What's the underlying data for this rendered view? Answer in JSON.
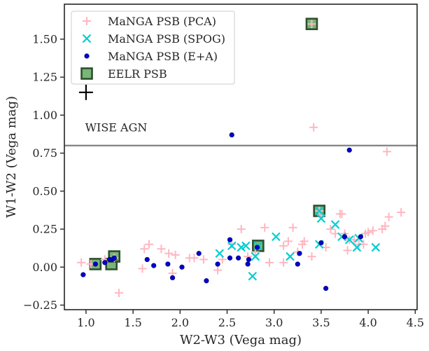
{
  "chart_data": {
    "type": "scatter",
    "xlabel": "W2-W3 (Vega mag)",
    "ylabel": "W1-W2 (Vega mag)",
    "xlim": [
      0.77,
      4.52
    ],
    "ylim": [
      -0.28,
      1.73
    ],
    "xticks": [
      1.0,
      1.5,
      2.0,
      2.5,
      3.0,
      3.5,
      4.0,
      4.5
    ],
    "xtick_labels": [
      "1.0",
      "1.5",
      "2.0",
      "2.5",
      "3.0",
      "3.5",
      "4.0",
      "4.5"
    ],
    "yticks": [
      -0.25,
      0.0,
      0.25,
      0.5,
      0.75,
      1.0,
      1.25,
      1.5
    ],
    "ytick_labels": [
      "−0.25",
      "0.00",
      "0.25",
      "0.50",
      "0.75",
      "1.00",
      "1.25",
      "1.50"
    ],
    "hline": {
      "y": 0.8,
      "color": "#808080",
      "label": "WISE AGN",
      "label_x": 0.99,
      "label_y": 0.92
    },
    "error_cross": {
      "x": 1.0,
      "y": 1.15
    },
    "legend": {
      "position": "top-left"
    },
    "series": [
      {
        "name": "MaNGA PSB (PCA)",
        "marker": "plus",
        "color": "#ffb6c1",
        "points": [
          [
            0.95,
            0.03
          ],
          [
            1.05,
            0.02
          ],
          [
            1.2,
            0.05
          ],
          [
            1.3,
            0.06
          ],
          [
            1.35,
            -0.17
          ],
          [
            1.6,
            -0.01
          ],
          [
            1.62,
            0.12
          ],
          [
            1.67,
            0.15
          ],
          [
            1.8,
            0.12
          ],
          [
            1.88,
            0.09
          ],
          [
            1.95,
            0.08
          ],
          [
            1.92,
            -0.04
          ],
          [
            2.1,
            0.06
          ],
          [
            2.15,
            0.06
          ],
          [
            2.25,
            0.05
          ],
          [
            2.4,
            -0.02
          ],
          [
            2.45,
            0.05
          ],
          [
            2.55,
            0.15
          ],
          [
            2.65,
            0.25
          ],
          [
            2.72,
            0.07
          ],
          [
            2.8,
            0.1
          ],
          [
            2.9,
            0.26
          ],
          [
            2.95,
            0.03
          ],
          [
            3.1,
            0.03
          ],
          [
            3.1,
            0.14
          ],
          [
            3.15,
            0.17
          ],
          [
            3.2,
            0.26
          ],
          [
            3.25,
            0.1
          ],
          [
            3.3,
            0.15
          ],
          [
            3.32,
            0.17
          ],
          [
            3.4,
            0.07
          ],
          [
            3.42,
            0.92
          ],
          [
            3.5,
            0.34
          ],
          [
            3.55,
            0.13
          ],
          [
            3.6,
            0.25
          ],
          [
            3.65,
            0.22
          ],
          [
            3.7,
            0.35
          ],
          [
            3.72,
            0.35
          ],
          [
            3.75,
            0.22
          ],
          [
            3.78,
            0.11
          ],
          [
            3.8,
            0.18
          ],
          [
            3.85,
            0.18
          ],
          [
            3.9,
            0.15
          ],
          [
            3.95,
            0.15
          ],
          [
            3.97,
            0.22
          ],
          [
            4.0,
            0.23
          ],
          [
            4.05,
            0.24
          ],
          [
            4.15,
            0.25
          ],
          [
            4.18,
            0.27
          ],
          [
            4.2,
            0.76
          ],
          [
            4.22,
            0.33
          ],
          [
            4.35,
            0.36
          ],
          [
            3.4,
            1.6
          ],
          [
            3.48,
            0.37
          ]
        ]
      },
      {
        "name": "MaNGA PSB (SPOG)",
        "marker": "x",
        "color": "#00ced1",
        "points": [
          [
            2.42,
            0.09
          ],
          [
            2.55,
            0.14
          ],
          [
            2.65,
            0.13
          ],
          [
            2.7,
            0.14
          ],
          [
            2.77,
            -0.06
          ],
          [
            2.8,
            0.07
          ],
          [
            2.83,
            0.14
          ],
          [
            3.02,
            0.2
          ],
          [
            3.17,
            0.07
          ],
          [
            3.48,
            0.15
          ],
          [
            3.5,
            0.32
          ],
          [
            3.48,
            0.37
          ],
          [
            3.65,
            0.28
          ],
          [
            3.72,
            0.2
          ],
          [
            3.8,
            0.18
          ],
          [
            3.88,
            0.13
          ],
          [
            3.9,
            0.19
          ],
          [
            4.08,
            0.13
          ]
        ]
      },
      {
        "name": "MaNGA PSB (E+A)",
        "marker": "dot",
        "color": "#0000cd",
        "points": [
          [
            0.97,
            -0.05
          ],
          [
            1.1,
            0.02
          ],
          [
            1.2,
            0.03
          ],
          [
            1.25,
            0.05
          ],
          [
            1.28,
            0.05
          ],
          [
            1.3,
            0.06
          ],
          [
            1.65,
            0.05
          ],
          [
            1.72,
            0.01
          ],
          [
            1.87,
            0.02
          ],
          [
            1.92,
            -0.07
          ],
          [
            2.02,
            0.0
          ],
          [
            2.2,
            0.09
          ],
          [
            2.28,
            -0.09
          ],
          [
            2.4,
            0.02
          ],
          [
            2.53,
            0.06
          ],
          [
            2.53,
            0.18
          ],
          [
            2.55,
            0.87
          ],
          [
            2.62,
            0.06
          ],
          [
            2.72,
            0.02
          ],
          [
            2.73,
            0.05
          ],
          [
            2.82,
            0.13
          ],
          [
            3.25,
            0.02
          ],
          [
            3.27,
            0.09
          ],
          [
            3.5,
            0.16
          ],
          [
            3.55,
            -0.14
          ],
          [
            3.75,
            0.2
          ],
          [
            3.8,
            0.77
          ],
          [
            3.92,
            0.2
          ]
        ]
      },
      {
        "name": "EELR PSB",
        "marker": "square",
        "color": "#4a9e4a",
        "points": [
          [
            1.1,
            0.02
          ],
          [
            1.27,
            0.02
          ],
          [
            1.3,
            0.07
          ],
          [
            2.83,
            0.14
          ],
          [
            3.4,
            1.6
          ],
          [
            3.48,
            0.37
          ]
        ]
      }
    ]
  }
}
